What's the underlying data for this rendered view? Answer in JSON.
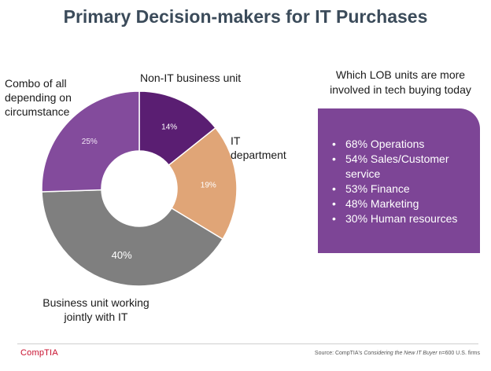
{
  "title": "Primary Decision-makers for IT Purchases",
  "chart_data": {
    "type": "pie",
    "donut": true,
    "slices": [
      {
        "label": "Non-IT business unit",
        "value": 14,
        "value_label": "14%",
        "color": "#5a1e72",
        "value_color": "#ffffff"
      },
      {
        "label": "IT department",
        "value": 19,
        "value_label": "19%",
        "color": "#e0a577",
        "value_color": "#ffffff"
      },
      {
        "label": "Business unit working jointly with IT",
        "value": 40,
        "value_label": "40%",
        "color": "#7f7f7f",
        "value_color": "#ffffff"
      },
      {
        "label": "Combo of all depending on circumstance",
        "value": 25,
        "value_label": "25%",
        "color": "#834b9c",
        "value_color": "#f2e6f7"
      }
    ]
  },
  "labels": {
    "non_it": "Non-IT business unit",
    "it_line1": "IT",
    "it_line2": "department",
    "bu_line1": "Business unit working",
    "bu_line2": "jointly with IT",
    "combo_line1": "Combo of all",
    "combo_line2": "depending on",
    "combo_line3": "circumstance"
  },
  "lob": {
    "heading_line1": "Which LOB units are more",
    "heading_line2": "involved in tech buying today",
    "items": [
      "68% Operations",
      "54% Sales/Customer service",
      "53% Finance",
      "48% Marketing",
      "30% Human resources"
    ],
    "box_color": "#7d4596"
  },
  "footer": {
    "logo": "CompTIA",
    "source_prefix": "Source: CompTIA's ",
    "source_title": "Considering the New IT Buyer",
    "source_suffix": " n=600 U.S. firms"
  }
}
